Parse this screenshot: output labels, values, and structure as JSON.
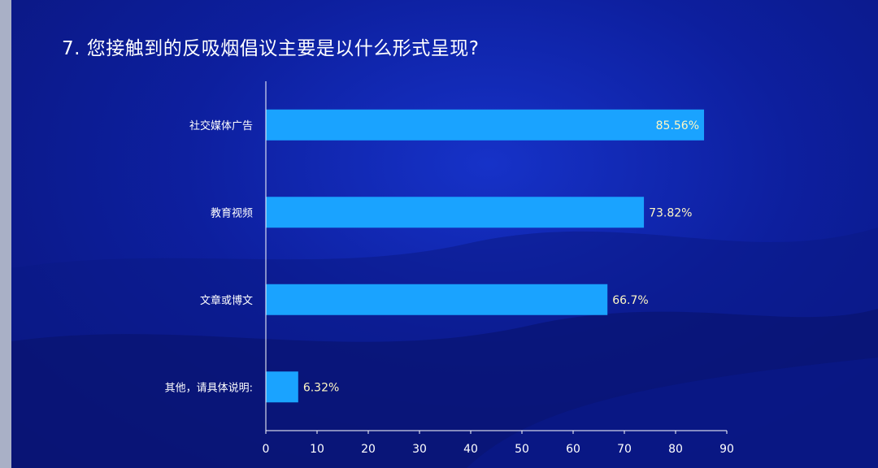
{
  "slide": {
    "title": "7. 您接触到的反吸烟倡议主要是以什么形式呈现?"
  },
  "colors": {
    "background_center": "#1632c8",
    "background_edge": "#0a157a",
    "bar": "#1aa3ff",
    "value_label": "#fff7c4",
    "axis": "#ffffff"
  },
  "chart_data": {
    "type": "bar",
    "orientation": "horizontal",
    "title": "7. 您接触到的反吸烟倡议主要是以什么形式呈现?",
    "categories": [
      "社交媒体广告",
      "教育视频",
      "文章或博文",
      "其他，请具体说明:"
    ],
    "values": [
      85.56,
      73.82,
      66.7,
      6.32
    ],
    "value_labels": [
      "85.56%",
      "73.82%",
      "66.7%",
      "6.32%"
    ],
    "xlim": [
      0,
      90
    ],
    "xticks": [
      0,
      10,
      20,
      30,
      40,
      50,
      60,
      70,
      80,
      90
    ],
    "xlabel": "",
    "ylabel": "",
    "grid": false,
    "legend": "none"
  }
}
